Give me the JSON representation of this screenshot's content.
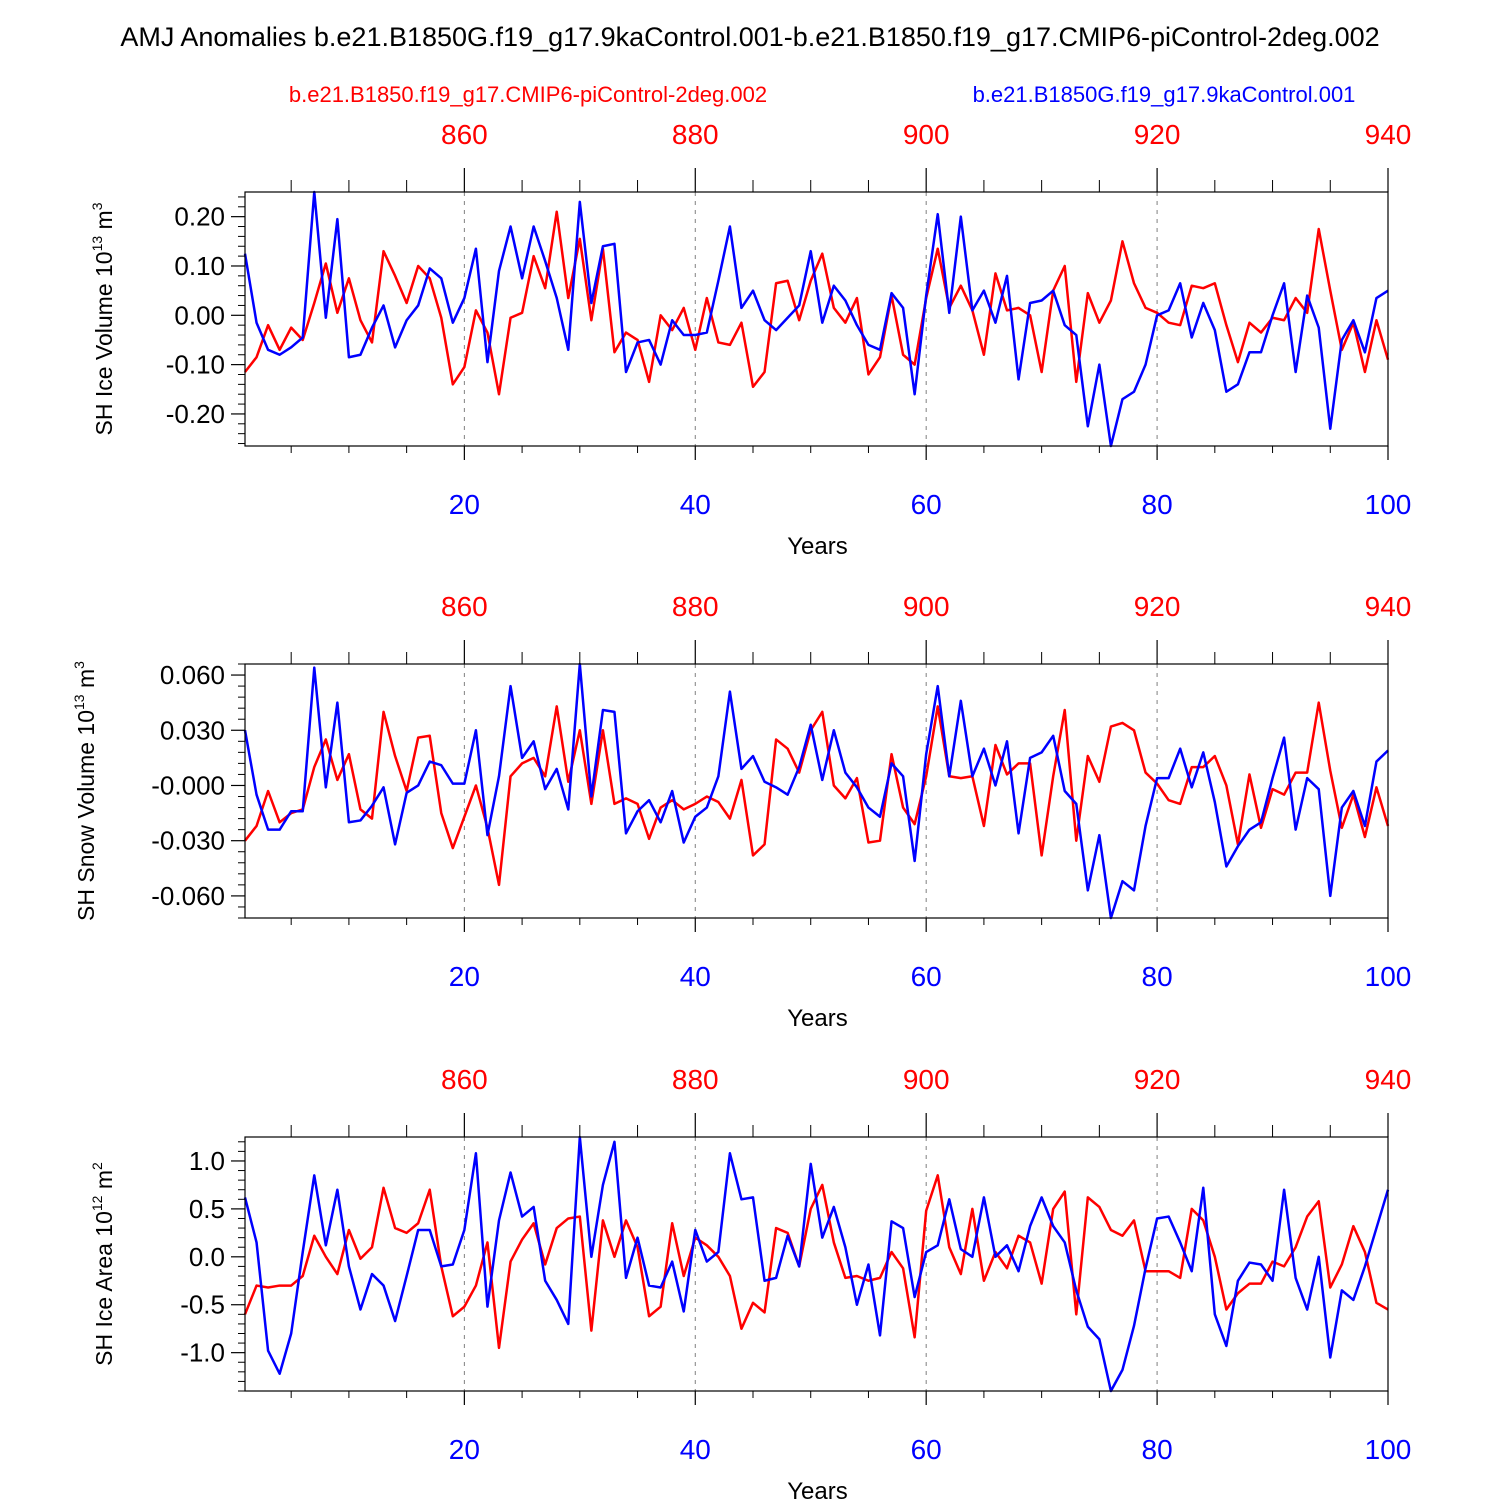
{
  "title": "AMJ Anomalies b.e21.B1850G.f19_g17.9kaControl.001-b.e21.B1850.f19_g17.CMIP6-piControl-2deg.002",
  "colors": {
    "red_series": "#ff0000",
    "blue_series": "#0000ff",
    "axis": "#000000",
    "grid": "#808080"
  },
  "chart_data": [
    {
      "type": "line",
      "ylabel": "SH Ice Volume 10",
      "ylabel_exp": "13",
      "ylabel_unit": " m",
      "ylabel_unit_exp": "3",
      "xlabel": "Years",
      "xlim": [
        1,
        100
      ],
      "ylim": [
        -0.265,
        0.25
      ],
      "yticks": [
        -0.2,
        -0.1,
        0.0,
        0.1,
        0.2
      ],
      "ytick_labels": [
        "-0.20",
        "-0.10",
        "0.00",
        "0.10",
        "0.20"
      ],
      "xticks_bottom": [
        20,
        40,
        60,
        80,
        100
      ],
      "xtick_labels_bottom": [
        "20",
        "40",
        "60",
        "80",
        "100"
      ],
      "xticks_top_offset": 840,
      "xticks_top": [
        860,
        880,
        900,
        920,
        940
      ],
      "xtick_labels_top": [
        "860",
        "880",
        "900",
        "920",
        "940"
      ],
      "grid_x": [
        20,
        40,
        60,
        80
      ],
      "series": [
        {
          "name": "b.e21.B1850.f19_g17.CMIP6-piControl-2deg.002",
          "color": "#ff0000",
          "values": [
            -0.115,
            -0.085,
            -0.02,
            -0.07,
            -0.025,
            -0.05,
            0.025,
            0.105,
            0.005,
            0.075,
            -0.01,
            -0.055,
            0.13,
            0.08,
            0.025,
            0.1,
            0.075,
            -0.005,
            -0.14,
            -0.105,
            0.01,
            -0.035,
            -0.16,
            -0.005,
            0.005,
            0.12,
            0.055,
            0.21,
            0.035,
            0.155,
            -0.01,
            0.135,
            -0.075,
            -0.035,
            -0.05,
            -0.135,
            0.0,
            -0.03,
            0.015,
            -0.07,
            0.035,
            -0.055,
            -0.06,
            -0.015,
            -0.145,
            -0.115,
            0.065,
            0.07,
            -0.01,
            0.07,
            0.125,
            0.015,
            -0.015,
            0.035,
            -0.12,
            -0.085,
            0.04,
            -0.08,
            -0.1,
            0.035,
            0.135,
            0.015,
            0.06,
            0.01,
            -0.08,
            0.085,
            0.01,
            0.015,
            0.0,
            -0.115,
            0.05,
            0.1,
            -0.135,
            0.045,
            -0.015,
            0.03,
            0.15,
            0.065,
            0.015,
            0.005,
            -0.015,
            -0.02,
            0.06,
            0.055,
            0.065,
            -0.02,
            -0.095,
            -0.015,
            -0.035,
            -0.005,
            -0.01,
            0.035,
            0.005,
            0.175,
            0.05,
            -0.07,
            -0.015,
            -0.115,
            -0.01,
            -0.09
          ]
        },
        {
          "name": "b.e21.B1850G.f19_g17.9kaControl.001",
          "color": "#0000ff",
          "values": [
            0.125,
            -0.015,
            -0.07,
            -0.08,
            -0.065,
            -0.045,
            0.25,
            -0.005,
            0.195,
            -0.085,
            -0.08,
            -0.025,
            0.02,
            -0.065,
            -0.01,
            0.02,
            0.095,
            0.075,
            -0.015,
            0.035,
            0.135,
            -0.095,
            0.09,
            0.18,
            0.075,
            0.18,
            0.11,
            0.035,
            -0.07,
            0.23,
            0.025,
            0.14,
            0.145,
            -0.115,
            -0.055,
            -0.05,
            -0.1,
            -0.01,
            -0.04,
            -0.04,
            -0.035,
            0.07,
            0.18,
            0.015,
            0.05,
            -0.01,
            -0.03,
            -0.005,
            0.02,
            0.13,
            -0.015,
            0.06,
            0.03,
            -0.02,
            -0.06,
            -0.07,
            0.045,
            0.015,
            -0.16,
            0.04,
            0.205,
            0.005,
            0.2,
            0.01,
            0.05,
            -0.015,
            0.08,
            -0.13,
            0.025,
            0.03,
            0.05,
            -0.02,
            -0.04,
            -0.225,
            -0.1,
            -0.265,
            -0.17,
            -0.155,
            -0.1,
            0.0,
            0.01,
            0.065,
            -0.045,
            0.025,
            -0.03,
            -0.155,
            -0.14,
            -0.075,
            -0.075,
            0.0,
            0.065,
            -0.115,
            0.04,
            -0.025,
            -0.23,
            -0.05,
            -0.01,
            -0.075,
            0.035,
            0.05
          ]
        }
      ]
    },
    {
      "type": "line",
      "ylabel": "SH Snow Volume 10",
      "ylabel_exp": "13",
      "ylabel_unit": " m",
      "ylabel_unit_exp": "3",
      "xlabel": "Years",
      "xlim": [
        1,
        100
      ],
      "ylim": [
        -0.072,
        0.066
      ],
      "yticks": [
        -0.06,
        -0.03,
        0.0,
        0.03,
        0.06
      ],
      "ytick_labels": [
        "-0.060",
        "-0.030",
        "-0.000",
        "0.030",
        "0.060"
      ],
      "xticks_bottom": [
        20,
        40,
        60,
        80,
        100
      ],
      "xtick_labels_bottom": [
        "20",
        "40",
        "60",
        "80",
        "100"
      ],
      "xticks_top_offset": 840,
      "xticks_top": [
        860,
        880,
        900,
        920,
        940
      ],
      "xtick_labels_top": [
        "860",
        "880",
        "900",
        "920",
        "940"
      ],
      "grid_x": [
        20,
        40,
        60,
        80
      ],
      "series": [
        {
          "name": "b.e21.B1850.f19_g17.CMIP6-piControl-2deg.002",
          "color": "#ff0000",
          "values": [
            -0.03,
            -0.022,
            -0.003,
            -0.02,
            -0.015,
            -0.013,
            0.01,
            0.025,
            0.003,
            0.017,
            -0.013,
            -0.018,
            0.04,
            0.016,
            -0.003,
            0.026,
            0.027,
            -0.015,
            -0.034,
            -0.017,
            0.0,
            -0.023,
            -0.054,
            0.005,
            0.012,
            0.015,
            0.005,
            0.043,
            0.002,
            0.03,
            -0.01,
            0.03,
            -0.01,
            -0.007,
            -0.01,
            -0.029,
            -0.012,
            -0.008,
            -0.013,
            -0.01,
            -0.006,
            -0.009,
            -0.018,
            0.003,
            -0.038,
            -0.032,
            0.025,
            0.02,
            0.007,
            0.03,
            0.04,
            0.0,
            -0.007,
            0.004,
            -0.031,
            -0.03,
            0.017,
            -0.012,
            -0.021,
            0.005,
            0.043,
            0.005,
            0.004,
            0.005,
            -0.022,
            0.022,
            0.006,
            0.012,
            0.012,
            -0.038,
            0.005,
            0.041,
            -0.03,
            0.016,
            0.002,
            0.032,
            0.034,
            0.03,
            0.007,
            0.001,
            -0.008,
            -0.01,
            0.01,
            0.01,
            0.016,
            0.0,
            -0.032,
            0.006,
            -0.023,
            -0.002,
            -0.005,
            0.007,
            0.007,
            0.045,
            0.008,
            -0.023,
            -0.005,
            -0.028,
            -0.001,
            -0.022
          ]
        },
        {
          "name": "b.e21.B1850G.f19_g17.9kaControl.001",
          "color": "#0000ff",
          "values": [
            0.03,
            -0.005,
            -0.024,
            -0.024,
            -0.014,
            -0.014,
            0.064,
            -0.001,
            0.045,
            -0.02,
            -0.019,
            -0.011,
            -0.001,
            -0.032,
            -0.004,
            0.0,
            0.013,
            0.011,
            0.001,
            0.001,
            0.03,
            -0.027,
            0.005,
            0.054,
            0.015,
            0.024,
            -0.002,
            0.009,
            -0.013,
            0.066,
            -0.006,
            0.041,
            0.04,
            -0.026,
            -0.014,
            -0.008,
            -0.02,
            -0.003,
            -0.031,
            -0.017,
            -0.012,
            0.005,
            0.051,
            0.009,
            0.016,
            0.002,
            -0.001,
            -0.005,
            0.01,
            0.033,
            0.003,
            0.03,
            0.007,
            -0.001,
            -0.012,
            -0.017,
            0.012,
            0.005,
            -0.041,
            0.017,
            0.054,
            0.005,
            0.046,
            0.005,
            0.02,
            0.0,
            0.024,
            -0.026,
            0.015,
            0.018,
            0.027,
            -0.003,
            -0.01,
            -0.057,
            -0.027,
            -0.072,
            -0.052,
            -0.057,
            -0.022,
            0.004,
            0.004,
            0.02,
            -0.001,
            0.018,
            -0.009,
            -0.044,
            -0.033,
            -0.024,
            -0.02,
            0.004,
            0.026,
            -0.024,
            0.004,
            -0.002,
            -0.06,
            -0.012,
            -0.003,
            -0.022,
            0.013,
            0.019
          ]
        }
      ]
    },
    {
      "type": "line",
      "ylabel": "SH Ice Area 10",
      "ylabel_exp": "12",
      "ylabel_unit": " m",
      "ylabel_unit_exp": "2",
      "xlabel": "Years",
      "xlim": [
        1,
        100
      ],
      "ylim": [
        -1.4,
        1.25
      ],
      "yticks": [
        -1.0,
        -0.5,
        0.0,
        0.5,
        1.0
      ],
      "ytick_labels": [
        "-1.0",
        "-0.5",
        "0.0",
        "0.5",
        "1.0"
      ],
      "xticks_bottom": [
        20,
        40,
        60,
        80,
        100
      ],
      "xtick_labels_bottom": [
        "20",
        "40",
        "60",
        "80",
        "100"
      ],
      "xticks_top_offset": 840,
      "xticks_top": [
        860,
        880,
        900,
        920,
        940
      ],
      "xtick_labels_top": [
        "860",
        "880",
        "900",
        "920",
        "940"
      ],
      "grid_x": [
        20,
        40,
        60,
        80
      ],
      "series": [
        {
          "name": "b.e21.B1850.f19_g17.CMIP6-piControl-2deg.002",
          "color": "#ff0000",
          "values": [
            -0.6,
            -0.3,
            -0.32,
            -0.3,
            -0.3,
            -0.2,
            0.22,
            0.0,
            -0.18,
            0.28,
            -0.02,
            0.1,
            0.72,
            0.3,
            0.25,
            0.35,
            0.7,
            -0.1,
            -0.62,
            -0.52,
            -0.3,
            0.15,
            -0.95,
            -0.05,
            0.18,
            0.35,
            -0.08,
            0.3,
            0.4,
            0.42,
            -0.77,
            0.38,
            0.0,
            0.38,
            0.1,
            -0.62,
            -0.52,
            0.35,
            -0.2,
            0.2,
            0.12,
            0.0,
            -0.2,
            -0.75,
            -0.48,
            -0.58,
            0.3,
            0.25,
            -0.1,
            0.5,
            0.75,
            0.15,
            -0.22,
            -0.2,
            -0.25,
            -0.22,
            0.05,
            -0.12,
            -0.84,
            0.48,
            0.85,
            0.1,
            -0.18,
            0.5,
            -0.25,
            0.05,
            -0.12,
            0.22,
            0.15,
            -0.28,
            0.5,
            0.68,
            -0.6,
            0.62,
            0.52,
            0.28,
            0.22,
            0.38,
            -0.15,
            -0.15,
            -0.15,
            -0.22,
            0.5,
            0.38,
            0.0,
            -0.55,
            -0.38,
            -0.28,
            -0.28,
            -0.05,
            -0.1,
            0.1,
            0.42,
            0.58,
            -0.32,
            -0.08,
            0.32,
            0.05,
            -0.48,
            -0.55
          ]
        },
        {
          "name": "b.e21.B1850G.f19_g17.9kaControl.001",
          "color": "#0000ff",
          "values": [
            0.62,
            0.15,
            -0.98,
            -1.22,
            -0.8,
            0.05,
            0.85,
            0.12,
            0.7,
            -0.1,
            -0.55,
            -0.18,
            -0.3,
            -0.67,
            -0.2,
            0.28,
            0.28,
            -0.1,
            -0.08,
            0.28,
            1.08,
            -0.52,
            0.38,
            0.88,
            0.42,
            0.52,
            -0.25,
            -0.45,
            -0.7,
            1.25,
            0.0,
            0.75,
            1.2,
            -0.22,
            0.2,
            -0.3,
            -0.32,
            -0.05,
            -0.57,
            0.28,
            -0.05,
            0.05,
            1.08,
            0.6,
            0.62,
            -0.25,
            -0.22,
            0.22,
            -0.1,
            0.97,
            0.2,
            0.52,
            0.1,
            -0.5,
            -0.08,
            -0.82,
            0.37,
            0.3,
            -0.42,
            0.05,
            0.12,
            0.6,
            0.08,
            0.0,
            0.62,
            0.0,
            0.12,
            -0.15,
            0.32,
            0.62,
            0.32,
            0.15,
            -0.35,
            -0.73,
            -0.86,
            -1.4,
            -1.18,
            -0.72,
            -0.12,
            0.4,
            0.42,
            0.15,
            -0.15,
            0.72,
            -0.6,
            -0.93,
            -0.25,
            -0.06,
            -0.08,
            -0.25,
            0.7,
            -0.22,
            -0.55,
            0.0,
            -1.05,
            -0.35,
            -0.45,
            -0.1,
            0.3,
            0.7
          ]
        }
      ]
    }
  ],
  "legend": {
    "red_label": "b.e21.B1850.f19_g17.CMIP6-piControl-2deg.002",
    "blue_label": "b.e21.B1850G.f19_g17.9kaControl.001"
  }
}
